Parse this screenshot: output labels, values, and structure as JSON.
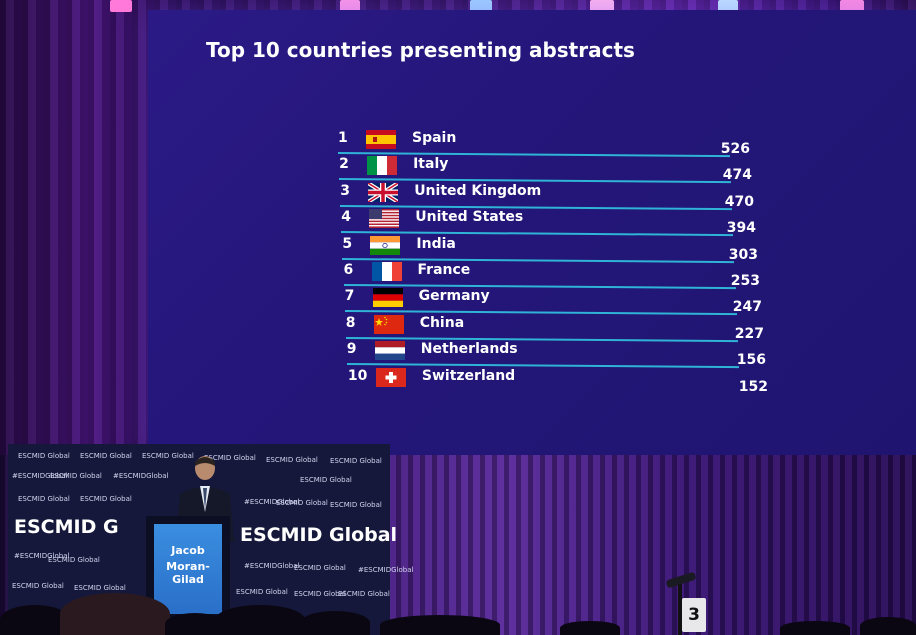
{
  "slide": {
    "title": "Top 10 countries presenting abstracts",
    "rows": [
      {
        "rank": "1",
        "flag": "spain-flag-icon",
        "country": "Spain",
        "value": "526"
      },
      {
        "rank": "2",
        "flag": "italy-flag-icon",
        "country": "Italy",
        "value": "474"
      },
      {
        "rank": "3",
        "flag": "uk-flag-icon",
        "country": "United Kingdom",
        "value": "470"
      },
      {
        "rank": "4",
        "flag": "usa-flag-icon",
        "country": "United States",
        "value": "394"
      },
      {
        "rank": "5",
        "flag": "india-flag-icon",
        "country": "India",
        "value": "303"
      },
      {
        "rank": "6",
        "flag": "france-flag-icon",
        "country": "France",
        "value": "253"
      },
      {
        "rank": "7",
        "flag": "germany-flag-icon",
        "country": "Germany",
        "value": "247"
      },
      {
        "rank": "8",
        "flag": "china-flag-icon",
        "country": "China",
        "value": "227"
      },
      {
        "rank": "9",
        "flag": "netherlands-flag-icon",
        "country": "Netherlands",
        "value": "156"
      },
      {
        "rank": "10",
        "flag": "switzerland-flag-icon",
        "country": "Switzerland",
        "value": "152"
      }
    ]
  },
  "stage": {
    "backdrop_small": "ESCMID Global",
    "backdrop_hashtag": "#ESCMIDGlobal",
    "backdrop_big_left": "ESCMID G",
    "backdrop_big_right": "ESCMID Global",
    "podium_name_line1": "Jacob",
    "podium_name_line2": "Moran-Gilad",
    "seat_number": "3"
  },
  "colors": {
    "screen_bg": "#24167a",
    "row_line": "#2fb3d6",
    "podium_sign": "#2a6fc8"
  }
}
